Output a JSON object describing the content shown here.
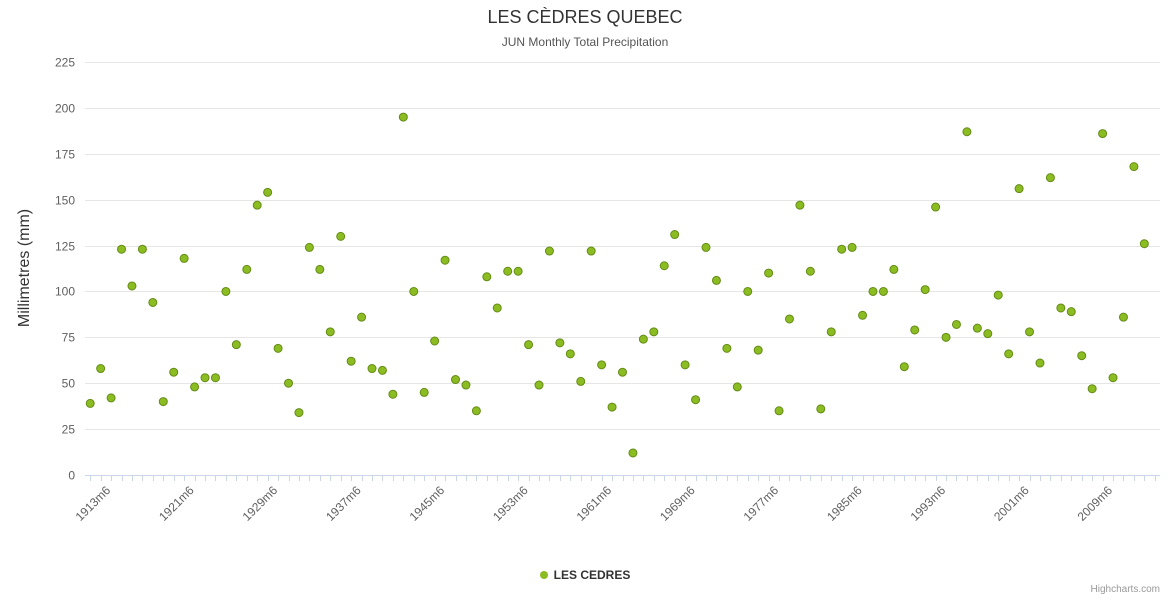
{
  "chart_data": {
    "type": "scatter",
    "title": "LES CÈDRES QUEBEC",
    "subtitle": "JUN Monthly Total Precipitation",
    "ylabel": "Millimetres (mm)",
    "xlabel": "",
    "legend_label": "LES CEDRES",
    "credits": "Highcharts.com",
    "ylim": [
      0,
      225
    ],
    "ytick_interval": 25,
    "xlim": [
      1910.5,
      2013.5
    ],
    "grid": true,
    "legend_position": "bottom-center",
    "marker_color": "#8bbc21",
    "marker_stroke": "#648c17",
    "grid_color": "#e6e6e6",
    "axis_line_color": "#ccd6eb",
    "tick_label_color": "#606060",
    "xtick_years": [
      1913,
      1921,
      1929,
      1937,
      1945,
      1953,
      1961,
      1969,
      1977,
      1985,
      1993,
      2001,
      2009
    ],
    "xtick_labels": [
      "1913m6",
      "1921m6",
      "1929m6",
      "1937m6",
      "1945m6",
      "1953m6",
      "1961m6",
      "1969m6",
      "1977m6",
      "1985m6",
      "1993m6",
      "2001m6",
      "2009m6"
    ],
    "minor_tick_years": [
      1911,
      2013
    ],
    "series": [
      {
        "name": "LES CEDRES",
        "x": [
          1911,
          1912,
          1913,
          1914,
          1915,
          1916,
          1917,
          1918,
          1919,
          1920,
          1921,
          1922,
          1923,
          1924,
          1925,
          1926,
          1927,
          1928,
          1929,
          1930,
          1931,
          1932,
          1933,
          1934,
          1935,
          1936,
          1937,
          1938,
          1939,
          1940,
          1941,
          1942,
          1943,
          1944,
          1945,
          1946,
          1947,
          1948,
          1949,
          1950,
          1951,
          1952,
          1953,
          1954,
          1955,
          1956,
          1957,
          1958,
          1959,
          1960,
          1961,
          1962,
          1963,
          1964,
          1965,
          1966,
          1967,
          1968,
          1969,
          1970,
          1971,
          1972,
          1973,
          1974,
          1975,
          1976,
          1977,
          1978,
          1979,
          1980,
          1981,
          1982,
          1983,
          1984,
          1985,
          1986,
          1987,
          1988,
          1989,
          1990,
          1991,
          1992,
          1993,
          1994,
          1995,
          1996,
          1997,
          1998,
          1999,
          2000,
          2001,
          2002,
          2003,
          2004,
          2005,
          2006,
          2007,
          2008,
          2009,
          2010,
          2011,
          2012
        ],
        "values": [
          39,
          58,
          42,
          123,
          103,
          123,
          94,
          40,
          56,
          118,
          48,
          53,
          53,
          100,
          71,
          112,
          147,
          154,
          69,
          50,
          34,
          124,
          112,
          78,
          130,
          62,
          86,
          58,
          57,
          44,
          195,
          100,
          45,
          73,
          117,
          52,
          49,
          35,
          108,
          91,
          111,
          111,
          71,
          49,
          122,
          72,
          66,
          51,
          122,
          60,
          37,
          56,
          12,
          74,
          78,
          114,
          131,
          60,
          41,
          124,
          106,
          69,
          48,
          100,
          68,
          110,
          35,
          85,
          147,
          111,
          36,
          78,
          123,
          124,
          87,
          100,
          100,
          112,
          59,
          79,
          101,
          146,
          75,
          82,
          187,
          80,
          77,
          98,
          66,
          156,
          78,
          61,
          162,
          91,
          89,
          65,
          47,
          186,
          53,
          86,
          168,
          126
        ]
      }
    ]
  }
}
